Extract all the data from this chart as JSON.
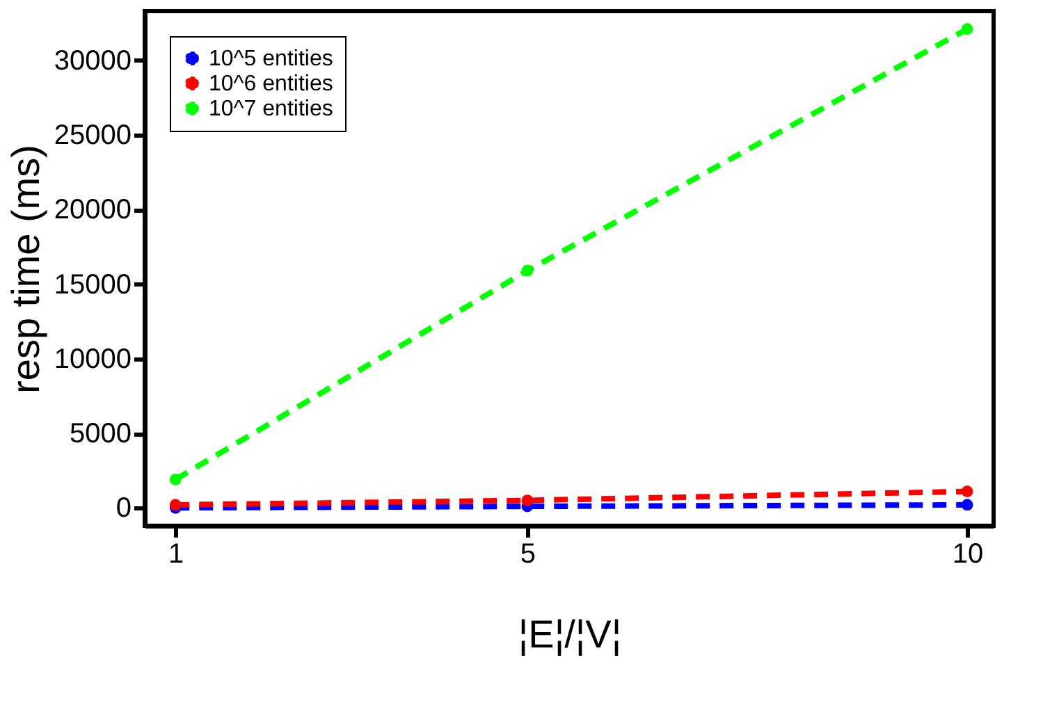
{
  "chart_data": {
    "type": "line",
    "xlabel": "¦E¦/¦V¦",
    "ylabel": "resp time (ms)",
    "x": [
      1,
      5,
      10
    ],
    "series": [
      {
        "name": "10^5 entities",
        "color": "#0000ff",
        "values": [
          0,
          100,
          200
        ]
      },
      {
        "name": "10^6 entities",
        "color": "#ff0000",
        "values": [
          200,
          500,
          1100
        ]
      },
      {
        "name": "10^7 entities",
        "color": "#00ff00",
        "values": [
          1900,
          15900,
          32100
        ]
      }
    ],
    "xlim": [
      0.65,
      10.3
    ],
    "xticks": [
      1,
      5,
      10
    ],
    "ylim": [
      -1200,
      33300
    ],
    "yticks": [
      0,
      5000,
      10000,
      15000,
      20000,
      25000,
      30000
    ],
    "grid": false,
    "legend": "top left",
    "marker": "circle",
    "line_style": "dashed"
  }
}
